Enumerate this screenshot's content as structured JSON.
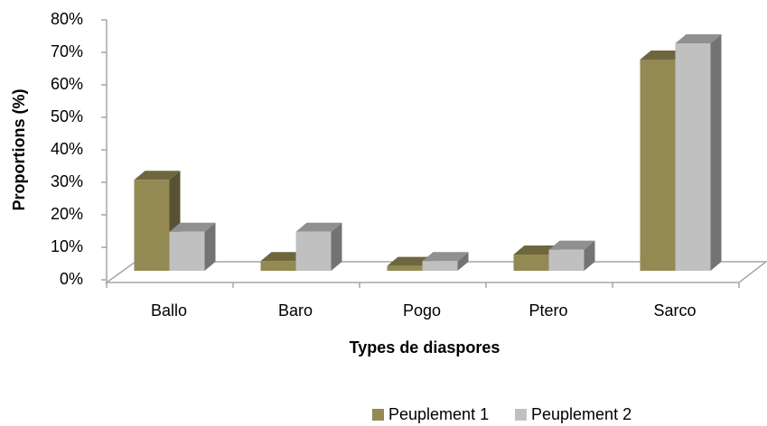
{
  "chart_data": {
    "type": "bar3d",
    "x_label": "Types de diaspores",
    "y_label": "Proportions (%)",
    "categories": [
      "Ballo",
      "Baro",
      "Pogo",
      "Ptero",
      "Sarco"
    ],
    "series": [
      {
        "name": "Peuplement 1",
        "color": "#938953",
        "values": [
          28,
          3,
          1.5,
          5,
          65
        ]
      },
      {
        "name": "Peuplement 2",
        "color": "#c0c0c0",
        "values": [
          12,
          12,
          3,
          6.5,
          70
        ]
      }
    ],
    "ylim": [
      0,
      80
    ],
    "yticks": [
      {
        "value": 0,
        "label": "0%"
      },
      {
        "value": 10,
        "label": "10%"
      },
      {
        "value": 20,
        "label": "20%"
      },
      {
        "value": 30,
        "label": "30%"
      },
      {
        "value": 40,
        "label": "40%"
      },
      {
        "value": 50,
        "label": "50%"
      },
      {
        "value": 60,
        "label": "60%"
      },
      {
        "value": 70,
        "label": "70%"
      },
      {
        "value": 80,
        "label": "80%"
      }
    ],
    "legend": "bottom"
  }
}
